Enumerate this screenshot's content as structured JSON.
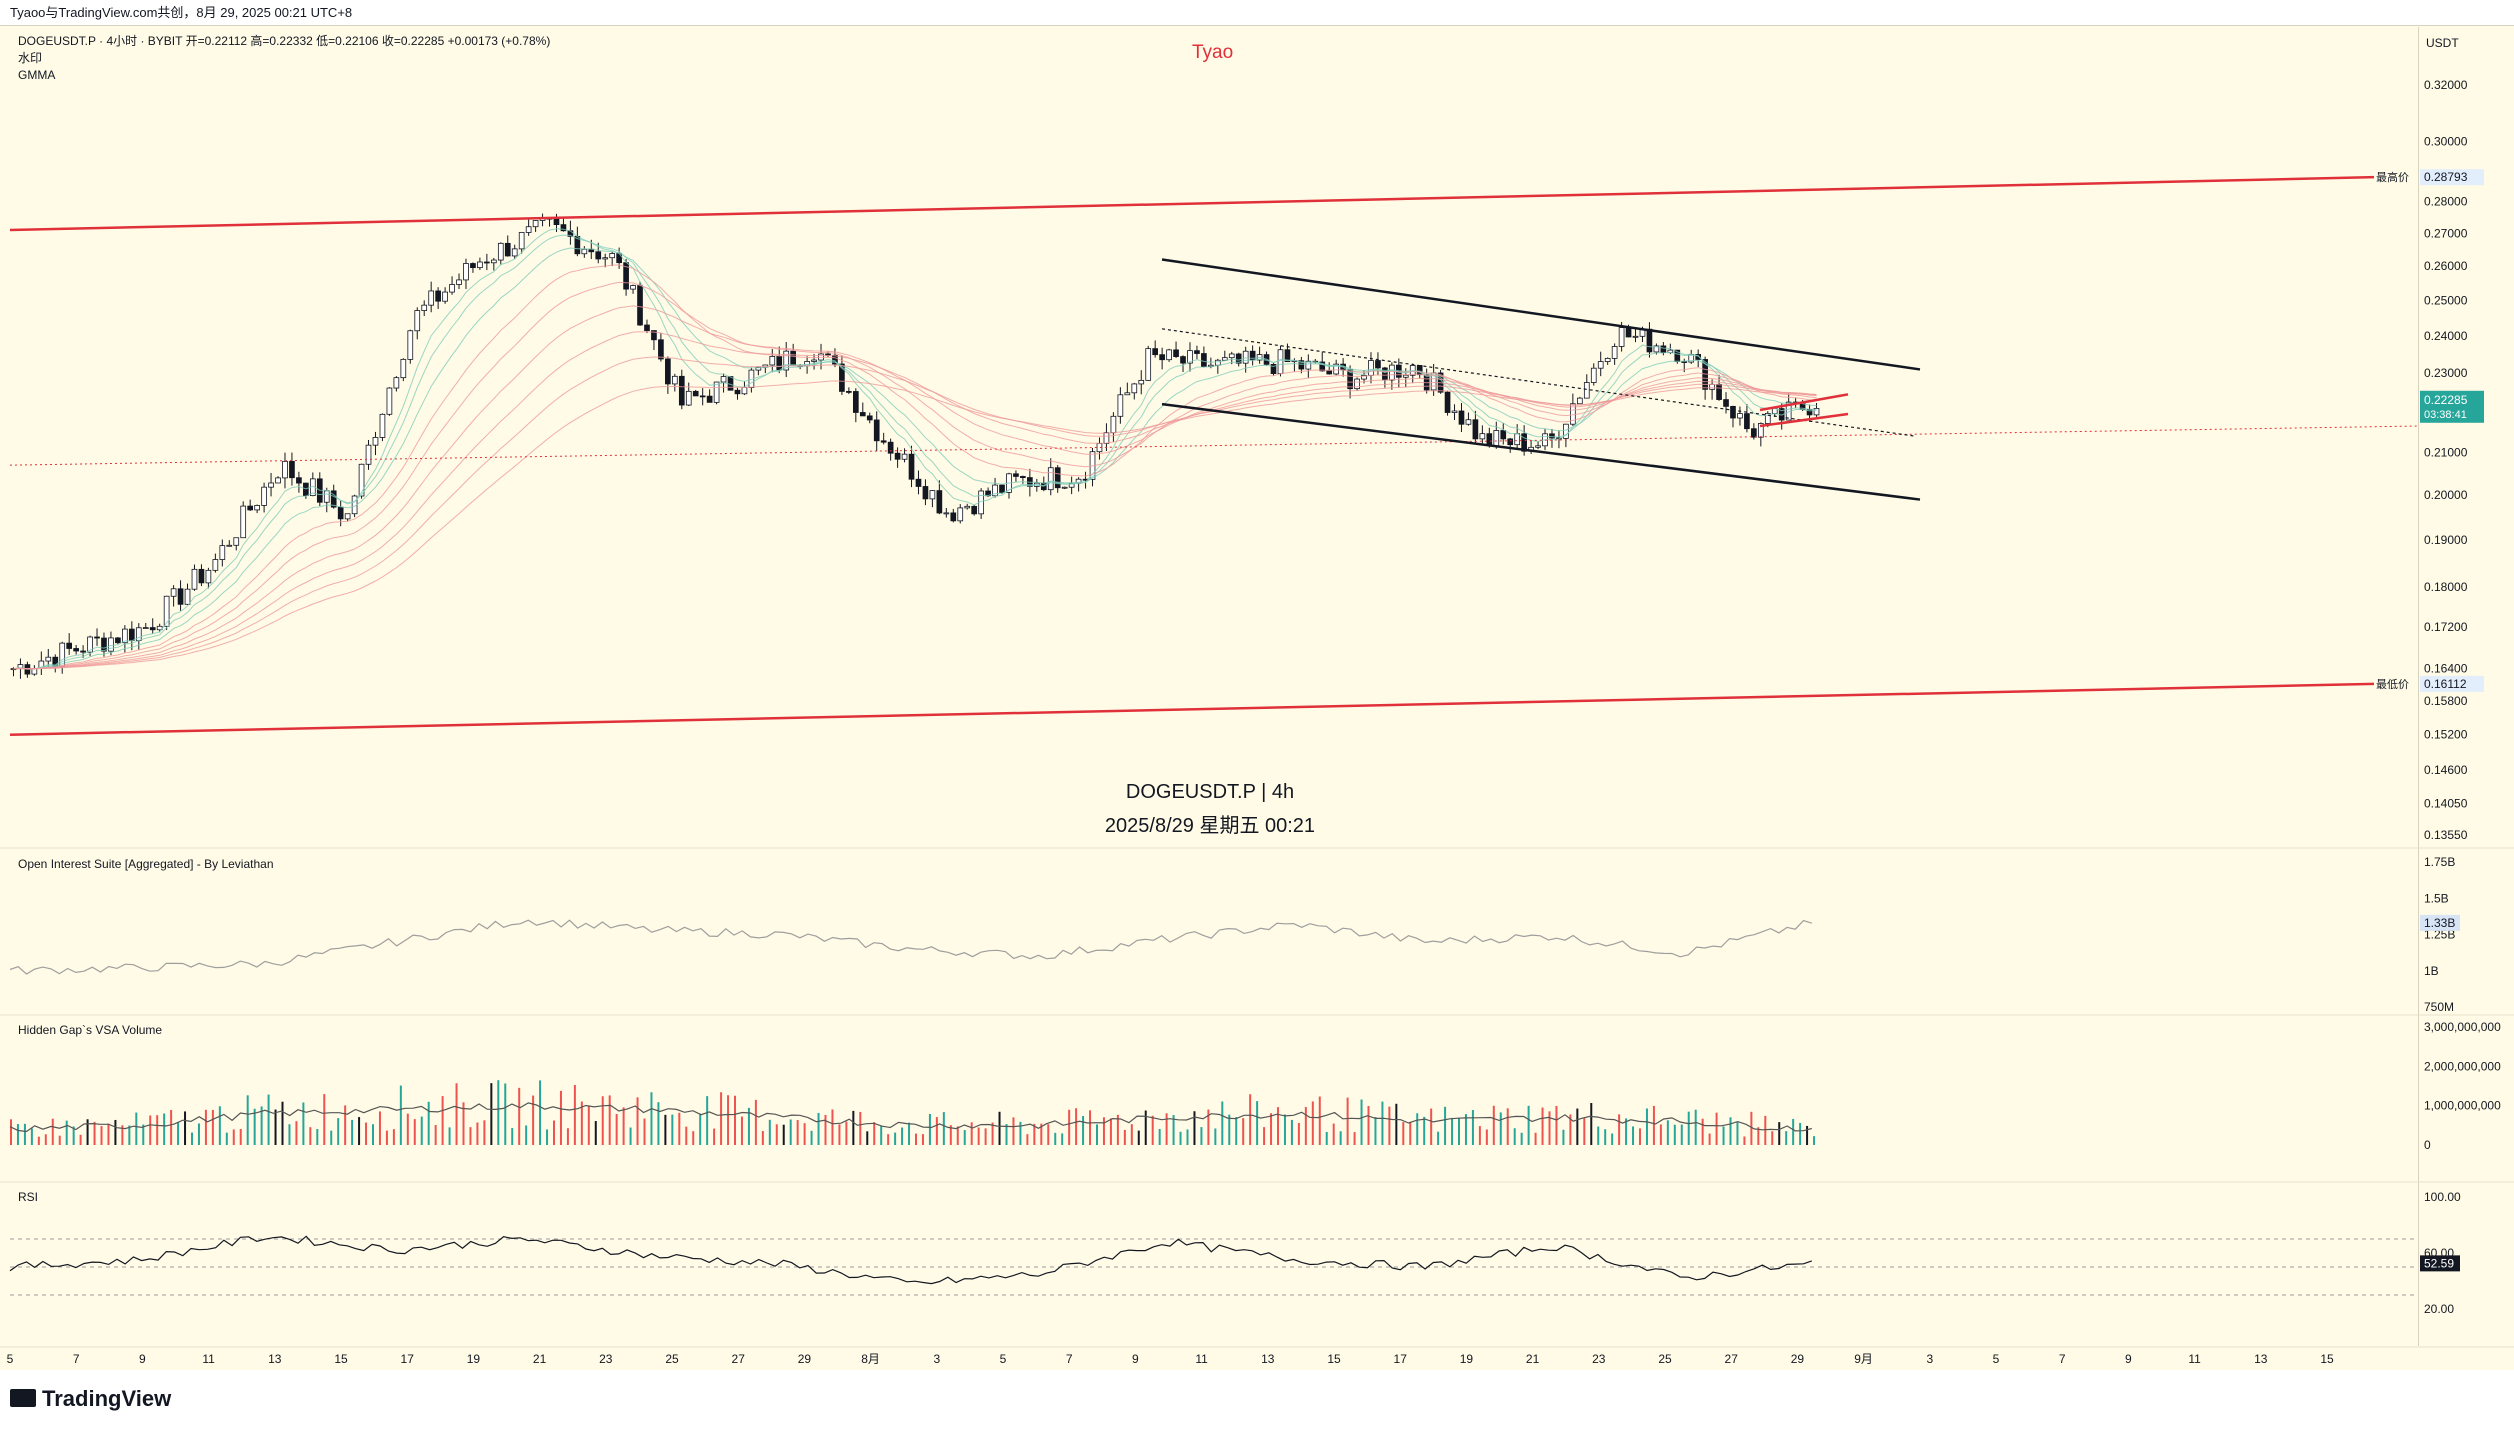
{
  "header": {
    "caption": "Tyaoo与TradingView.com共创，8月 29, 2025 00:21 UTC+8"
  },
  "legend": {
    "line1": "DOGEUSDT.P · 4小时 · BYBIT  开=0.22112  高=0.22332  低=0.22106  收=0.22285  +0.00173 (+0.78%)",
    "line2": "水印",
    "line3": "GMMA"
  },
  "watermark": {
    "top": "Tyao",
    "symbol": "DOGEUSDT.P | 4h",
    "datetime": "2025/8/29 星期五 00:21"
  },
  "price_axis": {
    "currency": "USDT",
    "ticks": [
      "0.32000",
      "0.30000",
      "0.28000",
      "0.27000",
      "0.26000",
      "0.25000",
      "0.24000",
      "0.23000",
      "0.22000",
      "0.21000",
      "0.20000",
      "0.19000",
      "0.18000",
      "0.17200",
      "0.16400",
      "0.15800",
      "0.15200",
      "0.14600",
      "0.14050",
      "0.13550"
    ],
    "high_label": "最高价",
    "high_value": "0.28793",
    "low_label": "最低价",
    "low_value": "0.16112",
    "last_price": "0.22285",
    "countdown": "03:38:41"
  },
  "panes": {
    "oi": {
      "title": "Open Interest Suite [Aggregated] - By Leviathan",
      "ticks": [
        "1.75B",
        "1.5B",
        "1.25B",
        "1B",
        "750M"
      ],
      "last": "1.33B"
    },
    "vsa": {
      "title": "Hidden Gap`s VSA Volume",
      "ticks": [
        "3,000,000,000",
        "2,000,000,000",
        "1,000,000,000",
        "0"
      ]
    },
    "rsi": {
      "title": "RSI",
      "ticks": [
        "100.00",
        "60.00",
        "20.00"
      ],
      "last": "52.59"
    }
  },
  "time_axis": {
    "labels": [
      "5",
      "7",
      "9",
      "11",
      "13",
      "15",
      "17",
      "19",
      "21",
      "23",
      "25",
      "27",
      "29",
      "8月",
      "3",
      "5",
      "7",
      "9",
      "11",
      "13",
      "15",
      "17",
      "19",
      "21",
      "23",
      "25",
      "27",
      "29",
      "9月",
      "3",
      "5",
      "7",
      "9",
      "11",
      "13",
      "15"
    ]
  },
  "footer": {
    "brand": "TradingView"
  },
  "colors": {
    "up": "#26a69a",
    "down": "#ef5350",
    "candle": "#131722",
    "channel": "#e0303a",
    "pane_bg": "#fffbe6"
  },
  "chart_data": [
    {
      "type": "candlestick",
      "title": "DOGEUSDT.P | 4h",
      "ylabel": "USDT",
      "ylim": [
        0.1355,
        0.32
      ],
      "scale": "log",
      "x": [
        "7/5",
        "7/7",
        "7/9",
        "7/11",
        "7/13",
        "7/15",
        "7/17",
        "7/19",
        "7/21",
        "7/23",
        "7/25",
        "7/27",
        "7/29",
        "8/1",
        "8/3",
        "8/5",
        "8/7",
        "8/9",
        "8/11",
        "8/13",
        "8/15",
        "8/17",
        "8/19",
        "8/21",
        "8/23",
        "8/25",
        "8/27",
        "8/29"
      ],
      "close": [
        0.164,
        0.168,
        0.172,
        0.185,
        0.207,
        0.195,
        0.245,
        0.262,
        0.272,
        0.262,
        0.222,
        0.229,
        0.237,
        0.214,
        0.196,
        0.203,
        0.205,
        0.234,
        0.232,
        0.233,
        0.229,
        0.232,
        0.213,
        0.212,
        0.241,
        0.236,
        0.215,
        0.22285
      ],
      "annotations": {
        "high": 0.28793,
        "low": 0.16112,
        "last": 0.22285
      }
    },
    {
      "type": "line",
      "title": "Open Interest Suite [Aggregated] - By Leviathan",
      "ylim": [
        750000000,
        1750000000
      ],
      "x": [
        "7/5",
        "7/9",
        "7/13",
        "7/17",
        "7/21",
        "7/25",
        "7/29",
        "8/3",
        "8/7",
        "8/11",
        "8/15",
        "8/19",
        "8/23",
        "8/27",
        "8/29"
      ],
      "values": [
        1000000000.0,
        1020000000.0,
        1050000000.0,
        1200000000.0,
        1350000000.0,
        1280000000.0,
        1250000000.0,
        1150000000.0,
        1100000000.0,
        1220000000.0,
        1320000000.0,
        1200000000.0,
        1240000000.0,
        1120000000.0,
        1330000000.0
      ]
    },
    {
      "type": "bar",
      "title": "Hidden Gap`s VSA Volume",
      "ylim": [
        0,
        3000000000
      ],
      "x": [
        "7/5",
        "7/9",
        "7/13",
        "7/17",
        "7/21",
        "7/25",
        "7/29",
        "8/3",
        "8/7",
        "8/11",
        "8/15",
        "8/19",
        "8/23",
        "8/27",
        "8/29"
      ],
      "values": [
        400000000.0,
        500000000.0,
        800000000.0,
        900000000.0,
        1000000000.0,
        900000000.0,
        700000000.0,
        500000000.0,
        500000000.0,
        700000000.0,
        800000000.0,
        600000000.0,
        700000000.0,
        600000000.0,
        400000000.0
      ]
    },
    {
      "type": "line",
      "title": "RSI",
      "ylim": [
        0,
        100
      ],
      "x": [
        "7/5",
        "7/9",
        "7/13",
        "7/17",
        "7/21",
        "7/25",
        "7/29",
        "8/3",
        "8/7",
        "8/11",
        "8/15",
        "8/19",
        "8/23",
        "8/27",
        "8/29"
      ],
      "values": [
        50,
        55,
        72,
        62,
        70,
        58,
        52,
        38,
        45,
        68,
        55,
        50,
        65,
        42,
        52.59
      ],
      "annotations": {
        "last": 52.59
      }
    }
  ]
}
